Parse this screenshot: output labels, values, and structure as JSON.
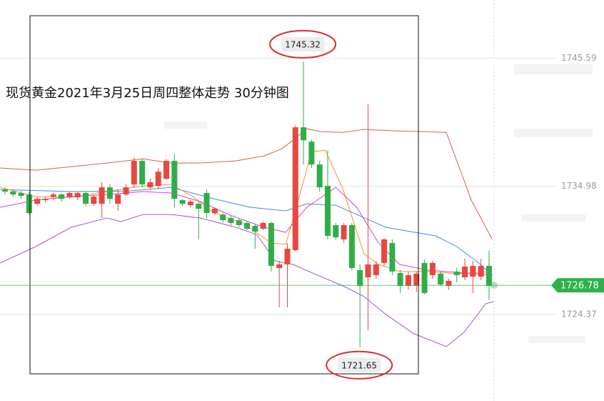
{
  "chart_data": {
    "type": "candlestick",
    "title": "现货黄金2021年3月25日周四整体走势  30分钟图",
    "up_color": "#e8473f",
    "down_color": "#2fae48",
    "xlim": [
      -0.62,
      74.25
    ],
    "ylim": [
      1717.2,
      1750.4
    ],
    "yticks": [
      1745.59,
      1734.98,
      1724.37
    ],
    "grid": true,
    "open": [
      1734.71,
      1734.54,
      1734.42,
      1734.3,
      1733.53,
      1733.83,
      1734.12,
      1734.3,
      1734.12,
      1734.06,
      1734.42,
      1733.53,
      1733.53,
      1734.89,
      1733.53,
      1734.3,
      1735.13,
      1737.08,
      1734.89,
      1735.01,
      1735.6,
      1737.08,
      1733.83,
      1733.41,
      1733.53,
      1734.42,
      1732.76,
      1732.64,
      1732.35,
      1732.17,
      1731.94,
      1731.7,
      1731.46,
      1731.94,
      1728.21,
      1728.51,
      1729.69,
      1739.86,
      1738.67,
      1736.78,
      1735.01,
      1731.76,
      1730.58,
      1731.76,
      1728.03,
      1727.44,
      1727.62,
      1728.63,
      1730.28,
      1727.8,
      1726.73,
      1726.73,
      1728.63,
      1727.62,
      1727.74,
      1726.73,
      1727.92,
      1727.44,
      1727.5,
      1727.5,
      1728.39
    ],
    "high": [
      1734.89,
      1734.71,
      1734.59,
      1734.54,
      1734.12,
      1734.12,
      1734.42,
      1734.42,
      1734.54,
      1734.54,
      1734.54,
      1734.3,
      1735.31,
      1735.13,
      1734.71,
      1735.13,
      1737.37,
      1737.25,
      1735.6,
      1736.49,
      1737.25,
      1737.67,
      1733.94,
      1733.83,
      1733.71,
      1734.71,
      1733.24,
      1732.76,
      1732.53,
      1732.35,
      1732.05,
      1731.82,
      1732.05,
      1732.05,
      1728.8,
      1730.28,
      1740.03,
      1745.32,
      1738.85,
      1737.08,
      1737.96,
      1731.94,
      1731.94,
      1731.94,
      1728.51,
      1741.8,
      1728.8,
      1730.7,
      1730.58,
      1728.03,
      1727.92,
      1727.92,
      1728.92,
      1728.8,
      1727.92,
      1727.33,
      1728.21,
      1728.98,
      1728.8,
      1728.98,
      1729.69
    ],
    "low": [
      1734.3,
      1734.12,
      1733.94,
      1732.64,
      1733.35,
      1733.65,
      1733.83,
      1733.71,
      1733.94,
      1733.83,
      1733.35,
      1733.35,
      1732.35,
      1733.53,
      1732.94,
      1734.18,
      1734.89,
      1734.89,
      1734.71,
      1734.71,
      1735.49,
      1733.24,
      1733.35,
      1733.24,
      1730.58,
      1732.35,
      1732.64,
      1731.94,
      1731.76,
      1731.58,
      1731.35,
      1729.81,
      1731.35,
      1727.92,
      1724.96,
      1724.96,
      1729.57,
      1736.78,
      1736.49,
      1734.54,
      1730.58,
      1730.58,
      1730.28,
      1728.03,
      1721.65,
      1723.07,
      1727.33,
      1728.39,
      1727.62,
      1726.14,
      1726.43,
      1726.25,
      1726.02,
      1727.33,
      1726.73,
      1726.43,
      1727.03,
      1727.21,
      1726.14,
      1727.21,
      1725.55
    ],
    "close": [
      1734.54,
      1734.3,
      1734.18,
      1732.76,
      1733.94,
      1733.94,
      1734.3,
      1733.94,
      1734.42,
      1734.42,
      1733.53,
      1734.12,
      1734.89,
      1733.94,
      1734.3,
      1734.89,
      1737.08,
      1735.13,
      1735.31,
      1736.19,
      1737.08,
      1733.94,
      1733.53,
      1733.71,
      1733.12,
      1732.76,
      1733.12,
      1732.17,
      1731.94,
      1731.76,
      1731.46,
      1731.23,
      1731.94,
      1728.39,
      1728.51,
      1729.81,
      1739.86,
      1738.79,
      1736.78,
      1734.89,
      1730.87,
      1730.75,
      1731.76,
      1728.21,
      1726.73,
      1728.51,
      1728.51,
      1730.58,
      1727.92,
      1726.73,
      1727.62,
      1727.74,
      1726.14,
      1728.63,
      1726.85,
      1727.15,
      1727.62,
      1728.33,
      1728.39,
      1728.39,
      1726.73
    ],
    "lines": [
      {
        "color": "#d9604a",
        "x": [
          -0.6,
          3.8,
          8.2,
          12.6,
          17.1,
          20.6,
          24.2,
          28.6,
          32.1,
          34.3,
          35.7,
          37.4,
          39.2,
          41.9,
          44.5,
          48.9,
          52.5,
          54.7,
          57.8,
          60.4
        ],
        "values": [
          1736.49,
          1736.31,
          1736.6,
          1736.9,
          1737.25,
          1736.9,
          1736.9,
          1737.08,
          1737.49,
          1738.08,
          1738.79,
          1739.74,
          1739.5,
          1739.44,
          1739.68,
          1739.56,
          1739.5,
          1739.44,
          1733.83,
          1730.58
        ]
      },
      {
        "color": "#3a8fe0",
        "x": [
          -0.6,
          8.2,
          15.3,
          20.6,
          25.9,
          30.4,
          34.8,
          37.4,
          41.0,
          43.6,
          47.2,
          50.7,
          53.4,
          56.0,
          58.7,
          60.4
        ],
        "values": [
          1734.71,
          1734.54,
          1734.59,
          1734.89,
          1733.94,
          1733.24,
          1732.94,
          1733.53,
          1733.41,
          1732.64,
          1731.58,
          1731.17,
          1730.87,
          1729.98,
          1728.63,
          1727.62
        ]
      },
      {
        "color": "#a552e8",
        "x": [
          -0.6,
          3.8,
          8.2,
          12.6,
          14.4,
          17.1,
          20.6,
          24.2,
          28.6,
          31.2,
          33.5,
          35.7,
          38.3,
          41.9,
          44.5,
          47.2,
          50.7,
          54.7,
          56.9,
          59.6,
          60.6
        ],
        "values": [
          1728.63,
          1729.98,
          1731.58,
          1732.35,
          1732.05,
          1732.64,
          1732.64,
          1732.35,
          1731.58,
          1730.99,
          1728.8,
          1728.51,
          1727.74,
          1726.73,
          1725.85,
          1724.37,
          1722.77,
          1721.71,
          1722.89,
          1725.26,
          1725.43
        ]
      },
      {
        "color": "#f0962a",
        "x": [
          -0.6,
          3.8,
          8.2,
          12.6,
          17.1,
          20.6,
          23.3,
          25.9,
          29.5,
          33.0,
          34.8,
          36.6,
          38.0,
          39.7,
          41.9,
          44.5,
          46.3,
          48.9,
          52.5,
          56.0,
          60.4
        ],
        "values": [
          1734.89,
          1734.12,
          1734.06,
          1734.54,
          1735.01,
          1735.13,
          1734.12,
          1732.76,
          1731.94,
          1730.28,
          1730.16,
          1734.42,
          1737.84,
          1737.96,
          1734.71,
          1729.39,
          1728.51,
          1727.92,
          1727.92,
          1727.74,
          1727.92
        ]
      },
      {
        "color": "#e03fd8",
        "x": [
          -0.6,
          3.8,
          8.2,
          12.6,
          17.1,
          20.6,
          24.2,
          27.7,
          32.1,
          34.8,
          37.4,
          41.0,
          43.6,
          46.3,
          48.9,
          52.5,
          56.9,
          60.4
        ],
        "values": [
          1733.24,
          1733.83,
          1734.12,
          1734.3,
          1734.54,
          1734.42,
          1733.71,
          1732.64,
          1731.58,
          1731.17,
          1733.24,
          1734.89,
          1733.24,
          1730.28,
          1728.51,
          1728.03,
          1727.8,
          1727.62
        ]
      }
    ],
    "annotations": [
      {
        "x": 37,
        "y": 1745.32,
        "side": "above"
      },
      {
        "x": 44,
        "y": 1721.65,
        "side": "below"
      }
    ],
    "last_price": 1726.78,
    "last_price_color": "#2db24a"
  }
}
